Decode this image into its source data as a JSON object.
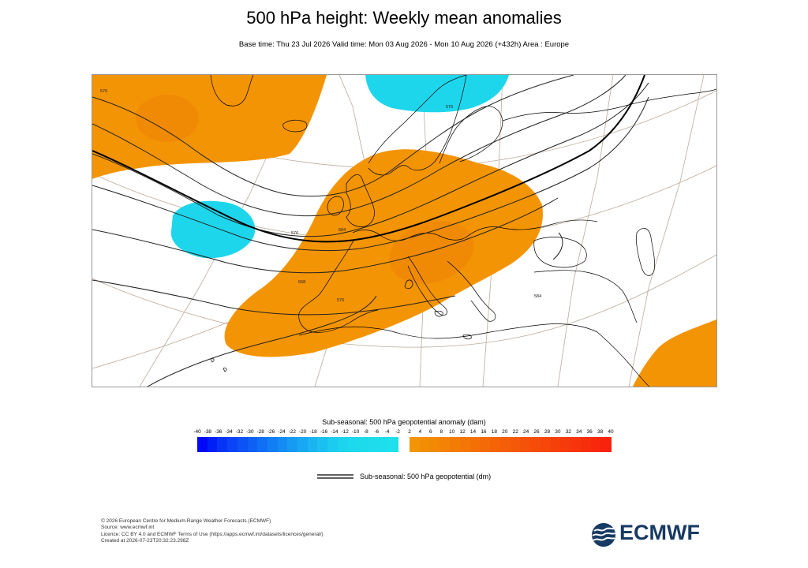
{
  "title": "500 hPa height: Weekly mean anomalies",
  "subtitle": "Base time: Thu 23 Jul 2026 Valid time: Mon 03 Aug 2026 - Mon 10 Aug 2026 (+432h) Area : Europe",
  "map": {
    "contour_labels": [
      "576",
      "576",
      "584",
      "576",
      "568",
      "576",
      "584"
    ],
    "colors": {
      "positive_anomaly": "#f39404",
      "negative_anomaly": "#1ed6ec",
      "coastline": "#000000",
      "contour": "#000000",
      "graticule": "#b4a89a"
    }
  },
  "colorbar": {
    "title": "Sub-seasonal: 500 hPa geopotential anomaly (dam)",
    "negative_labels": [
      "-40",
      "-38",
      "-36",
      "-34",
      "-32",
      "-30",
      "-28",
      "-26",
      "-24",
      "-22",
      "-20",
      "-18",
      "-16",
      "-14",
      "-12",
      "-10",
      "-8",
      "-6",
      "-4",
      "-2"
    ],
    "positive_labels": [
      "2",
      "4",
      "6",
      "8",
      "10",
      "12",
      "14",
      "16",
      "18",
      "20",
      "22",
      "24",
      "26",
      "28",
      "30",
      "32",
      "34",
      "36",
      "38",
      "40"
    ],
    "negative_colors": [
      "#0008f7",
      "#001ef6",
      "#0634f6",
      "#0a44f6",
      "#0c53f5",
      "#0e60f5",
      "#1070f5",
      "#127ef4",
      "#148cf4",
      "#169af3",
      "#18a8f3",
      "#1ab4f2",
      "#1bc0f1",
      "#1ccbf0",
      "#1dd4ef",
      "#1ed8ed",
      "#1edbec",
      "#1edcec",
      "#1eddec",
      "#1ee0ec"
    ],
    "positive_colors": [
      "#f39404",
      "#f38e04",
      "#f38804",
      "#f48205",
      "#f47c05",
      "#f47606",
      "#f47006",
      "#f46a07",
      "#f46407",
      "#f55e08",
      "#f55808",
      "#f55209",
      "#f64c09",
      "#f6460a",
      "#f6400a",
      "#f63a0b",
      "#f7340b",
      "#f72e0c",
      "#f8280c",
      "#f8220d"
    ]
  },
  "legend": {
    "line_label": "Sub-seasonal: 500 hPa geopotential (dm)"
  },
  "footer": [
    "© 2026 European Centre for Medium-Range Weather Forecasts (ECMWF)",
    "Source: www.ecmwf.int",
    "Licence: CC BY 4.0 and ECMWF Terms of Use (https://apps.ecmwf.int/datasets/licences/general/)",
    "Created at 2026-07-23T20:32:23.298Z"
  ],
  "logo": {
    "text": "ECMWF",
    "color": "#173a64"
  }
}
